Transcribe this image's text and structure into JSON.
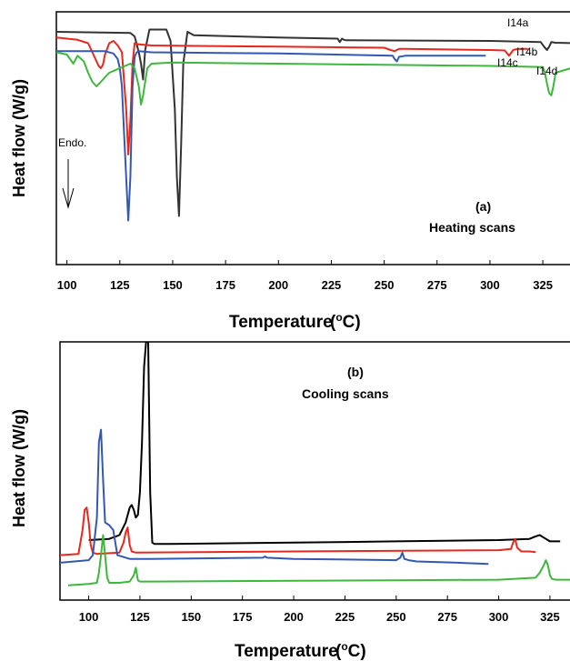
{
  "chart_data": [
    {
      "type": "line",
      "panel_label": "(a)",
      "title": "Heating scans",
      "xlabel": "Temperature",
      "xlabel_unit": "(°C)",
      "ylabel": "Heat flow (W/g)",
      "xlim": [
        95,
        340
      ],
      "ylim": [
        0,
        100
      ],
      "y_ticks_shown": false,
      "xticks": [
        100,
        125,
        150,
        175,
        200,
        225,
        250,
        275,
        300,
        325
      ],
      "annotation": {
        "text": "Endo.",
        "arrow": "down"
      },
      "series": [
        {
          "name": "I14a",
          "color": "#333333",
          "x": [
            95,
            130,
            132,
            134,
            135,
            136,
            137,
            139,
            141,
            147,
            149,
            151,
            152,
            153,
            154,
            155,
            157,
            160,
            200,
            228,
            229,
            230,
            231,
            232,
            300,
            324,
            326,
            327,
            328,
            329,
            331,
            340
          ],
          "y": [
            94,
            93.5,
            92,
            85,
            80,
            73,
            86,
            95,
            95,
            95,
            90,
            60,
            30,
            13,
            45,
            80,
            94,
            92.5,
            91.5,
            91,
            89.5,
            91,
            90.5,
            90.3,
            90,
            89.5,
            87,
            86,
            87.5,
            89.5,
            89.2,
            89
          ]
        },
        {
          "name": "I14b",
          "color": "#e8281e",
          "x": [
            95,
            105,
            110,
            113,
            115,
            116,
            117,
            118,
            120,
            122,
            124,
            126,
            128,
            129,
            130,
            131,
            132,
            134,
            140,
            200,
            250,
            253,
            255,
            257,
            260,
            300,
            307,
            309,
            311,
            313,
            318
          ],
          "y": [
            91.5,
            90.5,
            89,
            83,
            79,
            78,
            79.5,
            84,
            89,
            90,
            88,
            85,
            60,
            40,
            55,
            80,
            89,
            88.5,
            88,
            87.5,
            87,
            86,
            85.5,
            86.5,
            86.5,
            86,
            85.8,
            83.5,
            86,
            86.5,
            86.5
          ]
        },
        {
          "name": "I14c",
          "color": "#3358b4",
          "x": [
            95,
            118,
            122,
            124,
            125,
            126,
            127,
            128,
            129,
            130,
            131,
            132,
            133,
            134,
            140,
            200,
            254,
            255,
            256,
            257,
            260,
            298
          ],
          "y": [
            85.5,
            85.5,
            84.5,
            82,
            78,
            70,
            50,
            30,
            11,
            30,
            70,
            83,
            85,
            85.5,
            85,
            84.5,
            83.5,
            82,
            81,
            83,
            83.5,
            83.5
          ]
        },
        {
          "name": "I14d",
          "color": "#3db83c",
          "x": [
            95,
            100,
            103,
            105,
            108,
            110,
            112,
            114,
            116,
            118,
            120,
            125,
            130,
            132,
            134,
            135,
            136,
            138,
            140,
            150,
            200,
            250,
            300,
            325,
            326,
            327,
            328,
            329,
            330,
            331,
            340
          ],
          "y": [
            85,
            84,
            80,
            83.5,
            81,
            76,
            72,
            70,
            72,
            74,
            76,
            78,
            80,
            78,
            70,
            62,
            66,
            78,
            80,
            80.5,
            80,
            79.5,
            79,
            78.5,
            76,
            71,
            67,
            66,
            70,
            76,
            78.5
          ]
        }
      ],
      "series_labels": [
        "I14a",
        "I14b",
        "I14c",
        "I14d"
      ]
    },
    {
      "type": "line",
      "panel_label": "(b)",
      "title": "Cooling scans",
      "xlabel": "Temperature",
      "xlabel_unit": "(°C)",
      "ylabel": "Heat flow (W/g)",
      "xlim": [
        86,
        337
      ],
      "ylim": [
        0,
        100
      ],
      "y_ticks_shown": false,
      "xticks": [
        100,
        125,
        150,
        175,
        200,
        225,
        250,
        275,
        300,
        325
      ],
      "series": [
        {
          "color": "#000000",
          "x": [
            100,
            110,
            115,
            118,
            120,
            121,
            122,
            123,
            124,
            125,
            126,
            127,
            128,
            129,
            130,
            131,
            132,
            140,
            200,
            250,
            300,
            315,
            318,
            320,
            322,
            325,
            330
          ],
          "y": [
            21,
            21.5,
            23,
            28,
            34,
            35,
            33,
            30,
            31,
            40,
            60,
            90,
            100,
            100,
            40,
            20,
            19.5,
            19.5,
            20,
            20.5,
            21,
            21.5,
            22.5,
            23,
            22,
            20.5,
            20.5
          ]
        },
        {
          "name": "",
          "color": "#e8281e",
          "x": [
            86,
            95,
            97,
            98,
            99,
            100,
            101,
            102,
            104,
            110,
            115,
            117,
            118,
            119,
            120,
            121,
            123,
            200,
            300,
            306,
            307,
            308,
            309,
            311,
            315,
            318
          ],
          "y": [
            15,
            15.5,
            25,
            33,
            34,
            28,
            19,
            16,
            15.5,
            15.8,
            16,
            20,
            24,
            26,
            19,
            16.5,
            16,
            16.5,
            17,
            17.5,
            20,
            21.5,
            18,
            16.5,
            16.5,
            16.2
          ]
        },
        {
          "name": "",
          "color": "#3358b4",
          "x": [
            86,
            100,
            102,
            104,
            105,
            106,
            107,
            108,
            110,
            112,
            114,
            120,
            130,
            185,
            186,
            187,
            200,
            250,
            252,
            253,
            254,
            256,
            260,
            280,
            295
          ],
          "y": [
            12,
            13,
            15,
            30,
            60,
            65,
            45,
            28,
            27,
            25,
            15,
            13.5,
            13.5,
            14,
            14.5,
            14,
            13.5,
            13,
            14,
            16,
            13.5,
            13,
            12.5,
            12,
            11.5
          ]
        },
        {
          "name": "",
          "color": "#3db83c",
          "x": [
            90,
            100,
            104,
            105,
            106,
            107,
            108,
            109,
            110,
            115,
            120,
            122,
            123,
            124,
            125,
            130,
            200,
            250,
            300,
            318,
            320,
            322,
            323,
            324,
            325,
            326,
            328,
            335,
            337
          ],
          "y": [
            3,
            3.5,
            4,
            8,
            15,
            23,
            15,
            6,
            4,
            4,
            4.5,
            7,
            10,
            5,
            4.5,
            4.5,
            4.8,
            5,
            5.2,
            6,
            8,
            11,
            13,
            11,
            7,
            5.5,
            5.2,
            5.2,
            4.5
          ]
        }
      ]
    }
  ]
}
